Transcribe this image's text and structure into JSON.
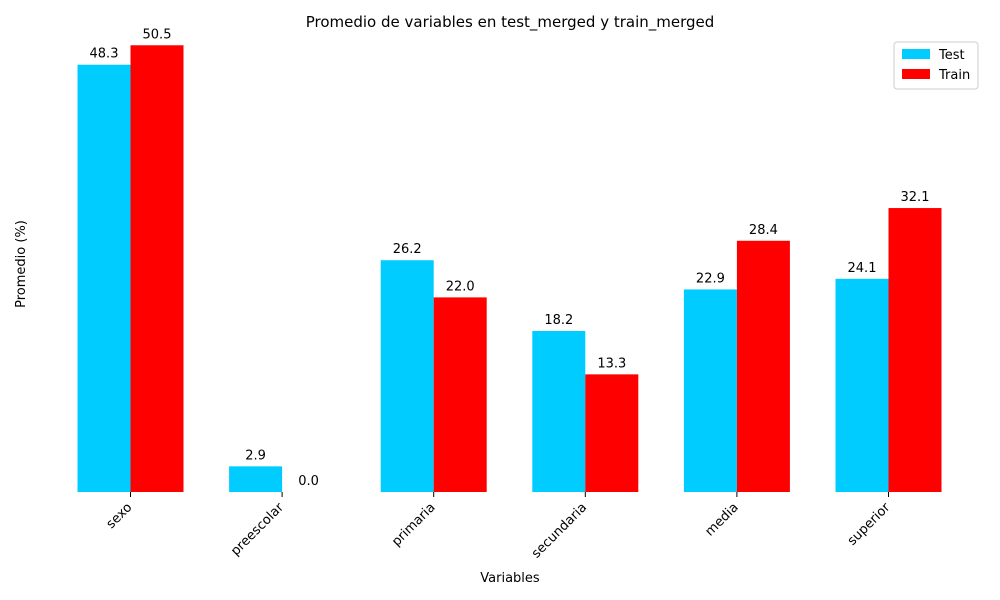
{
  "chart_data": {
    "type": "bar",
    "title": "Promedio de variables en test_merged y train_merged",
    "xlabel": "Variables",
    "ylabel": "Promedio (%)",
    "categories": [
      "sexo",
      "preescolar",
      "primaria",
      "secundaria",
      "media",
      "superior"
    ],
    "series": [
      {
        "name": "Test",
        "color": "#00ccff",
        "values": [
          48.3,
          2.9,
          26.2,
          18.2,
          22.9,
          24.1
        ]
      },
      {
        "name": "Train",
        "color": "#ff0000",
        "values": [
          50.5,
          0.0,
          22.0,
          13.3,
          28.4,
          32.1
        ]
      }
    ],
    "data_labels": [
      [
        "48.3",
        "2.9",
        "26.2",
        "18.2",
        "22.9",
        "24.1"
      ],
      [
        "50.5",
        "0.0",
        "22.0",
        "13.3",
        "28.4",
        "32.1"
      ]
    ],
    "ylim": [
      0,
      52
    ],
    "grid": false,
    "legend_position": "top-right"
  }
}
